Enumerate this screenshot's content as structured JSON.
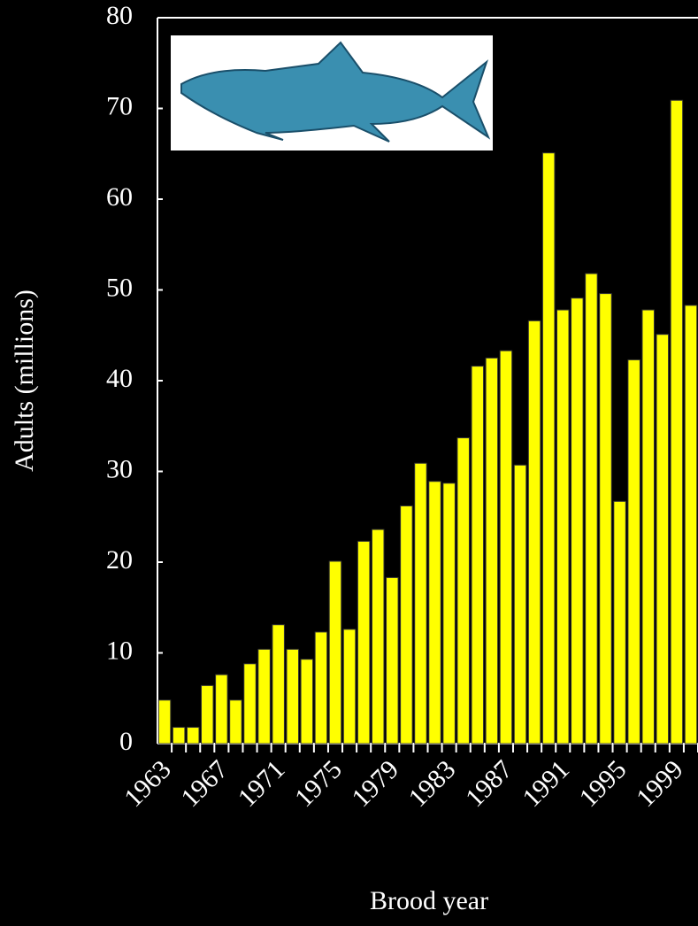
{
  "chart_data": {
    "type": "bar",
    "y_label": "Adults (millions)",
    "x_label": "Brood year",
    "categories": [
      "1963",
      null,
      null,
      null,
      "1967",
      null,
      null,
      null,
      "1971",
      null,
      null,
      null,
      "1975",
      null,
      null,
      null,
      "1979",
      null,
      null,
      null,
      "1983",
      null,
      null,
      null,
      "1987",
      null,
      null,
      null,
      "1991",
      null,
      null,
      null,
      "1995",
      null,
      null,
      null,
      "1999",
      null
    ],
    "values": [
      4.8,
      1.8,
      1.8,
      6.4,
      7.6,
      4.8,
      8.8,
      10.4,
      13.1,
      10.4,
      9.3,
      12.3,
      20.1,
      12.6,
      22.3,
      23.6,
      18.3,
      26.2,
      30.9,
      28.9,
      28.7,
      33.7,
      41.6,
      42.5,
      43.3,
      30.7,
      46.6,
      65.1,
      47.8,
      49.1,
      51.8,
      49.6,
      26.7,
      42.3,
      47.8,
      45.1,
      70.9,
      48.3
    ],
    "color": "#ffff00",
    "ylim": [
      0,
      80
    ],
    "yticks": [
      0,
      10,
      20,
      30,
      40,
      50,
      60,
      70,
      80
    ]
  }
}
